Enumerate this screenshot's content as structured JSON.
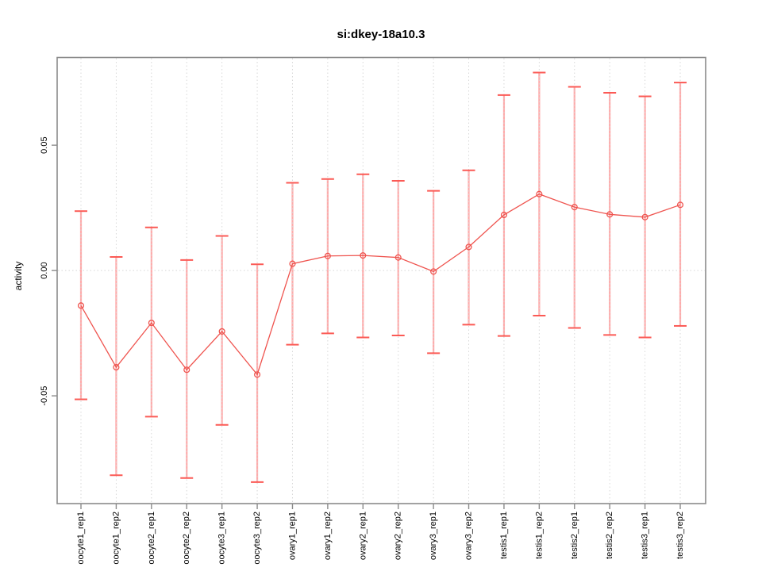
{
  "chart_data": {
    "type": "line",
    "title": "si:dkey-18a10.3",
    "xlabel": "",
    "ylabel": "activity",
    "categories": [
      "oocyte1_rep1",
      "oocyte1_rep2",
      "oocyte2_rep1",
      "oocyte2_rep2",
      "oocyte3_rep1",
      "oocyte3_rep2",
      "ovary1_rep1",
      "ovary1_rep2",
      "ovary2_rep1",
      "ovary2_rep2",
      "ovary3_rep1",
      "ovary3_rep2",
      "testis1_rep1",
      "testis1_rep2",
      "testis2_rep1",
      "testis2_rep2",
      "testis3_rep1",
      "testis3_rep2"
    ],
    "series": [
      {
        "name": "activity",
        "values": [
          -0.014,
          -0.0386,
          -0.0209,
          -0.0396,
          -0.0243,
          -0.0415,
          0.0027,
          0.0058,
          0.006,
          0.0052,
          -0.0004,
          0.0094,
          0.0222,
          0.0305,
          0.0253,
          0.0224,
          0.0213,
          0.0262
        ],
        "upper": [
          0.0237,
          0.0054,
          0.0172,
          0.0042,
          0.0138,
          0.0025,
          0.035,
          0.0365,
          0.0384,
          0.0358,
          0.0318,
          0.04,
          0.07,
          0.079,
          0.0733,
          0.0709,
          0.0695,
          0.075
        ],
        "lower": [
          -0.0514,
          -0.0817,
          -0.0583,
          -0.0828,
          -0.0616,
          -0.0844,
          -0.0296,
          -0.0251,
          -0.0267,
          -0.0259,
          -0.033,
          -0.0216,
          -0.0261,
          -0.018,
          -0.0229,
          -0.0257,
          -0.0267,
          -0.0221
        ]
      }
    ],
    "yticks": [
      -0.05,
      0.0,
      0.05
    ],
    "ytick_labels": [
      "-0.05",
      "0.00",
      "0.05"
    ],
    "ylim": [
      -0.093,
      0.085
    ],
    "xtick_label_rotation_deg": 90,
    "marker": "open-circle",
    "error_bars": true,
    "grid": {
      "vertical": "dotted at each category",
      "horizontal": "dotted at y=0"
    },
    "legend_position": "none",
    "colors": {
      "line": "#ef544f",
      "marker": "#ef544f",
      "errorbar_whisker": "#ffaaaa",
      "errorbar_cap": "#fb5a55",
      "gridline": "#d6d6d6",
      "frame": "#8b8b8b",
      "text": "#000000",
      "background": "#ffffff"
    }
  }
}
